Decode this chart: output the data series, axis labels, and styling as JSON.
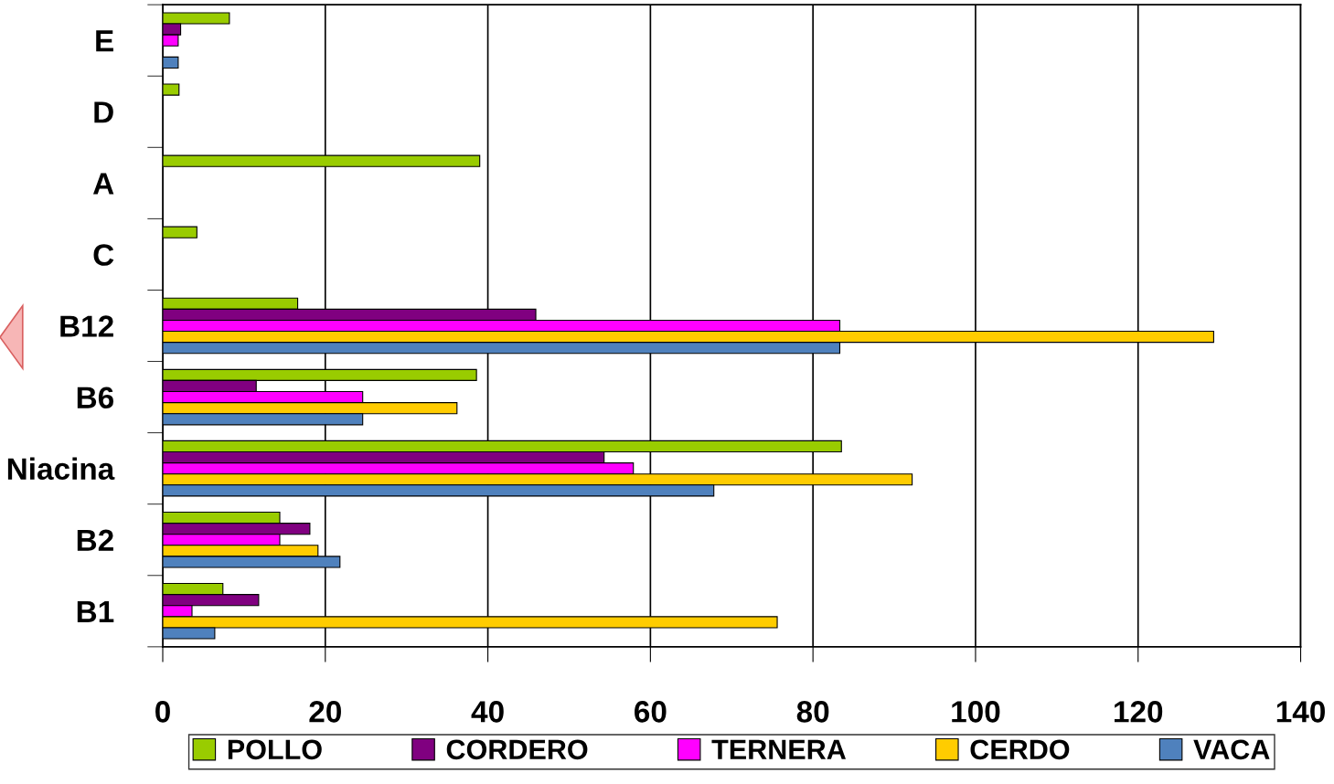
{
  "chart_data": {
    "type": "bar",
    "orientation": "horizontal",
    "categories": [
      "E",
      "D",
      "A",
      "C",
      "B12",
      "B6",
      "Niacina",
      "B2",
      "B1"
    ],
    "series": [
      {
        "name": "POLLO",
        "color": "#99cc00",
        "values": [
          8.2,
          2.0,
          39.0,
          4.2,
          16.6,
          38.6,
          83.5,
          14.4,
          7.4
        ]
      },
      {
        "name": "CORDERO",
        "color": "#800080",
        "values": [
          2.2,
          null,
          null,
          null,
          45.9,
          11.5,
          54.3,
          18.1,
          11.8
        ]
      },
      {
        "name": "TERNERA",
        "color": "#ff00ff",
        "values": [
          1.9,
          null,
          null,
          null,
          83.3,
          24.6,
          57.9,
          14.4,
          3.6
        ]
      },
      {
        "name": "CERDO",
        "color": "#ffcc00",
        "values": [
          null,
          null,
          null,
          null,
          129.3,
          36.2,
          92.2,
          19.1,
          75.6
        ]
      },
      {
        "name": "VACA",
        "color": "#4f81bd",
        "values": [
          1.9,
          null,
          null,
          null,
          83.3,
          24.6,
          67.8,
          21.8,
          6.4
        ]
      }
    ],
    "xlim": [
      0,
      140
    ],
    "xticks": [
      0,
      20,
      40,
      60,
      80,
      100,
      120,
      140
    ],
    "grid": "x",
    "legend": "bottom"
  }
}
